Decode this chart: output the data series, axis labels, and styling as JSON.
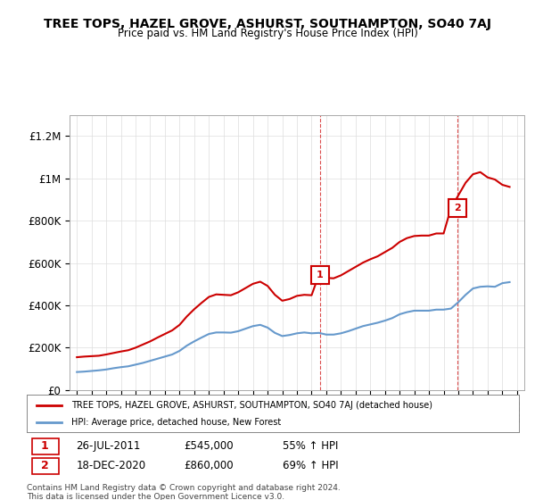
{
  "title": "TREE TOPS, HAZEL GROVE, ASHURST, SOUTHAMPTON, SO40 7AJ",
  "subtitle": "Price paid vs. HM Land Registry's House Price Index (HPI)",
  "ylabel_ticks": [
    "£0",
    "£200K",
    "£400K",
    "£600K",
    "£800K",
    "£1M",
    "£1.2M"
  ],
  "ytick_values": [
    0,
    200000,
    400000,
    600000,
    800000,
    1000000,
    1200000
  ],
  "ylim": [
    0,
    1300000
  ],
  "xlim_start": 1994.5,
  "xlim_end": 2025.5,
  "red_color": "#cc0000",
  "blue_color": "#6699cc",
  "marker1_x": 2011.57,
  "marker1_y": 545000,
  "marker2_x": 2020.96,
  "marker2_y": 860000,
  "sale1_date": "26-JUL-2011",
  "sale1_price": "£545,000",
  "sale1_note": "55% ↑ HPI",
  "sale2_date": "18-DEC-2020",
  "sale2_price": "£860,000",
  "sale2_note": "69% ↑ HPI",
  "legend_line1": "TREE TOPS, HAZEL GROVE, ASHURST, SOUTHAMPTON, SO40 7AJ (detached house)",
  "legend_line2": "HPI: Average price, detached house, New Forest",
  "footer": "Contains HM Land Registry data © Crown copyright and database right 2024.\nThis data is licensed under the Open Government Licence v3.0.",
  "hpi_x": [
    1995,
    1995.5,
    1996,
    1996.5,
    1997,
    1997.5,
    1998,
    1998.5,
    1999,
    1999.5,
    2000,
    2000.5,
    2001,
    2001.5,
    2002,
    2002.5,
    2003,
    2003.5,
    2004,
    2004.5,
    2005,
    2005.5,
    2006,
    2006.5,
    2007,
    2007.5,
    2008,
    2008.5,
    2009,
    2009.5,
    2010,
    2010.5,
    2011,
    2011.5,
    2012,
    2012.5,
    2013,
    2013.5,
    2014,
    2014.5,
    2015,
    2015.5,
    2016,
    2016.5,
    2017,
    2017.5,
    2018,
    2018.5,
    2019,
    2019.5,
    2020,
    2020.5,
    2021,
    2021.5,
    2022,
    2022.5,
    2023,
    2023.5,
    2024,
    2024.5
  ],
  "hpi_y": [
    85000,
    87000,
    90000,
    93000,
    97000,
    103000,
    108000,
    112000,
    120000,
    128000,
    138000,
    148000,
    158000,
    168000,
    185000,
    210000,
    230000,
    248000,
    265000,
    272000,
    272000,
    271000,
    278000,
    290000,
    302000,
    308000,
    295000,
    270000,
    255000,
    260000,
    268000,
    272000,
    268000,
    270000,
    262000,
    262000,
    268000,
    278000,
    290000,
    302000,
    310000,
    318000,
    328000,
    340000,
    358000,
    368000,
    375000,
    375000,
    375000,
    380000,
    380000,
    385000,
    415000,
    450000,
    480000,
    488000,
    490000,
    488000,
    505000,
    510000
  ],
  "price_x": [
    1995,
    1995.5,
    1996,
    1996.5,
    1997,
    1997.5,
    1998,
    1998.5,
    1999,
    1999.5,
    2000,
    2000.5,
    2001,
    2001.5,
    2002,
    2002.5,
    2003,
    2003.5,
    2004,
    2004.5,
    2005,
    2005.5,
    2006,
    2006.5,
    2007,
    2007.5,
    2008,
    2008.5,
    2009,
    2009.5,
    2010,
    2010.5,
    2011,
    2011.5,
    2012,
    2012.5,
    2013,
    2013.5,
    2014,
    2014.5,
    2015,
    2015.5,
    2016,
    2016.5,
    2017,
    2017.5,
    2018,
    2018.5,
    2019,
    2019.5,
    2020,
    2020.5,
    2021,
    2021.5,
    2022,
    2022.5,
    2023,
    2023.5,
    2024,
    2024.5
  ],
  "price_y": [
    155000,
    158000,
    160000,
    162000,
    168000,
    175000,
    182000,
    188000,
    200000,
    215000,
    230000,
    248000,
    265000,
    282000,
    308000,
    348000,
    382000,
    412000,
    440000,
    452000,
    450000,
    448000,
    462000,
    482000,
    502000,
    512000,
    492000,
    450000,
    422000,
    430000,
    445000,
    450000,
    448000,
    545000,
    530000,
    528000,
    542000,
    562000,
    582000,
    602000,
    618000,
    632000,
    652000,
    672000,
    700000,
    718000,
    728000,
    730000,
    730000,
    740000,
    740000,
    860000,
    920000,
    980000,
    1020000,
    1030000,
    1005000,
    995000,
    970000,
    960000
  ]
}
